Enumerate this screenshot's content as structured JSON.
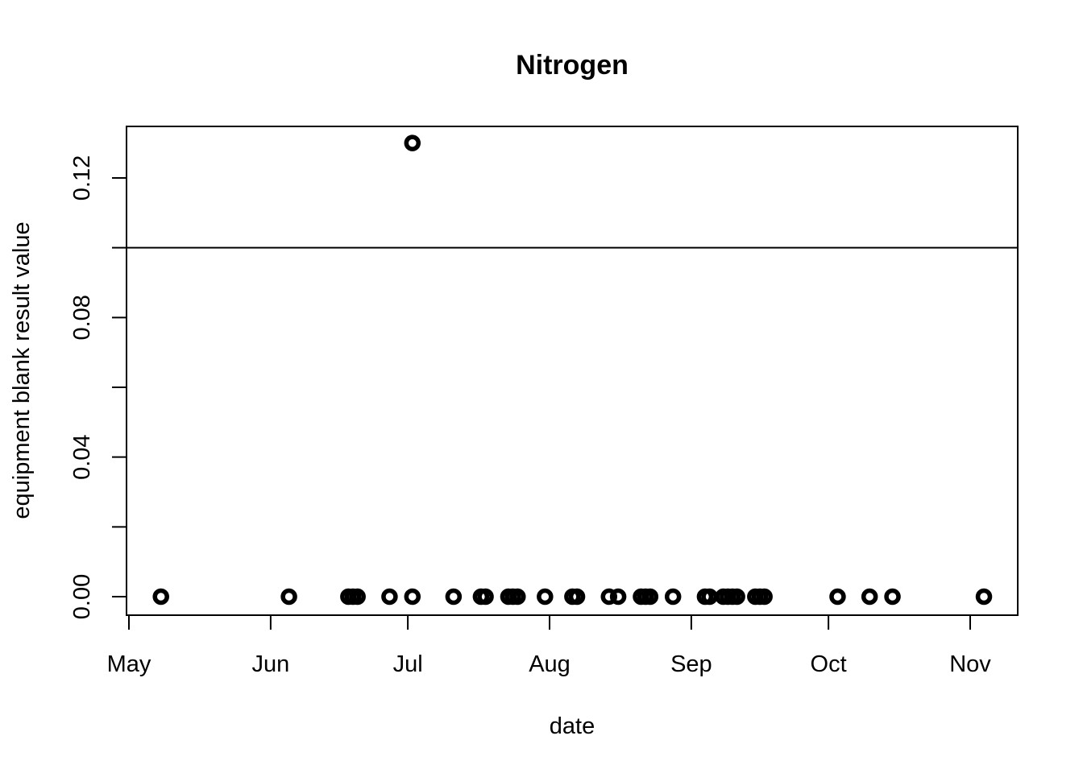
{
  "chart_data": {
    "type": "scatter",
    "title": "Nitrogen",
    "xlabel": "date",
    "ylabel": "equipment blank result value",
    "x_ticks": [
      {
        "label": "May",
        "date": "05-01"
      },
      {
        "label": "Jun",
        "date": "06-01"
      },
      {
        "label": "Jul",
        "date": "07-01"
      },
      {
        "label": "Aug",
        "date": "08-01"
      },
      {
        "label": "Sep",
        "date": "09-01"
      },
      {
        "label": "Oct",
        "date": "10-01"
      },
      {
        "label": "Nov",
        "date": "11-01"
      }
    ],
    "xlim": [
      "04-30",
      "11-07"
    ],
    "ylim": [
      0,
      0.13
    ],
    "y_ticks": [
      0.0,
      0.04,
      0.08,
      0.12
    ],
    "y_minor_ticks": [
      0.02,
      0.06,
      0.1
    ],
    "y_tick_labels": [
      "0.00",
      "0.04",
      "0.08",
      "0.12"
    ],
    "reference_line": {
      "y": 0.1
    },
    "grid": false,
    "legend": "none",
    "point_color": "#000000",
    "series": [
      {
        "points": [
          {
            "x": "05-08",
            "y": 0
          },
          {
            "x": "06-05",
            "y": 0
          },
          {
            "x": "06-18",
            "y": 0
          },
          {
            "x": "06-19",
            "y": 0
          },
          {
            "x": "06-20",
            "y": 0
          },
          {
            "x": "06-27",
            "y": 0
          },
          {
            "x": "07-02",
            "y": 0
          },
          {
            "x": "07-02",
            "y": 0.13
          },
          {
            "x": "07-11",
            "y": 0
          },
          {
            "x": "07-17",
            "y": 0
          },
          {
            "x": "07-18",
            "y": 0
          },
          {
            "x": "07-23",
            "y": 0
          },
          {
            "x": "07-24",
            "y": 0
          },
          {
            "x": "07-25",
            "y": 0
          },
          {
            "x": "07-31",
            "y": 0
          },
          {
            "x": "08-06",
            "y": 0
          },
          {
            "x": "08-07",
            "y": 0
          },
          {
            "x": "08-14",
            "y": 0
          },
          {
            "x": "08-16",
            "y": 0
          },
          {
            "x": "08-21",
            "y": 0
          },
          {
            "x": "08-22",
            "y": 0
          },
          {
            "x": "08-23",
            "y": 0
          },
          {
            "x": "08-28",
            "y": 0
          },
          {
            "x": "09-04",
            "y": 0
          },
          {
            "x": "09-05",
            "y": 0
          },
          {
            "x": "09-08",
            "y": 0
          },
          {
            "x": "09-09",
            "y": 0
          },
          {
            "x": "09-10",
            "y": 0
          },
          {
            "x": "09-11",
            "y": 0
          },
          {
            "x": "09-15",
            "y": 0
          },
          {
            "x": "09-16",
            "y": 0
          },
          {
            "x": "09-17",
            "y": 0
          },
          {
            "x": "10-03",
            "y": 0
          },
          {
            "x": "10-10",
            "y": 0
          },
          {
            "x": "10-15",
            "y": 0
          },
          {
            "x": "11-04",
            "y": 0
          }
        ]
      }
    ]
  }
}
